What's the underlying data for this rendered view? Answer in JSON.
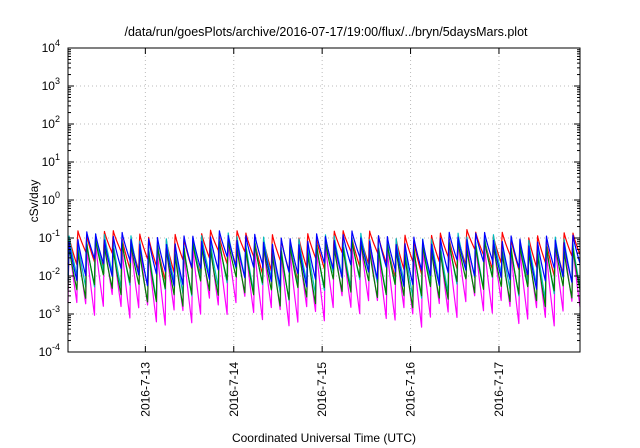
{
  "chart_data": {
    "type": "line",
    "title": "/data/run/goesPlots/archive/2016-07-17/19:00/flux/../bryn/5daysMars.plot",
    "xlabel": "Coordinated Universal Time (UTC)",
    "ylabel": "cSv/day",
    "yscale": "log",
    "ylim": [
      0.0001,
      10000
    ],
    "xlim": [
      "2016-07-12 03:00",
      "2016-07-17 22:00"
    ],
    "grid": true,
    "legend": "none",
    "y_tick_labels": [
      {
        "base": "10",
        "exp": "-4",
        "value": 0.0001
      },
      {
        "base": "10",
        "exp": "-3",
        "value": 0.001
      },
      {
        "base": "10",
        "exp": "-2",
        "value": 0.01
      },
      {
        "base": "10",
        "exp": "-1",
        "value": 0.1
      },
      {
        "base": "10",
        "exp": "0",
        "value": 1
      },
      {
        "base": "10",
        "exp": "1",
        "value": 10
      },
      {
        "base": "10",
        "exp": "2",
        "value": 100
      },
      {
        "base": "10",
        "exp": "3",
        "value": 1000
      },
      {
        "base": "10",
        "exp": "4",
        "value": 10000
      }
    ],
    "x_tick_labels": [
      "2016-7-13",
      "2016-7-14",
      "2016-7-15",
      "2016-7-16",
      "2016-7-17"
    ],
    "x_tick_values": [
      "2016-07-13 00:00",
      "2016-07-14 00:00",
      "2016-07-15 00:00",
      "2016-07-16 00:00",
      "2016-07-17 00:00"
    ],
    "period_hours": 2.4,
    "series": [
      {
        "color": "#ff0000",
        "peak": 0.11,
        "trough": 0.02
      },
      {
        "color": "#ff00ff",
        "peak": 0.07,
        "trough": 0.0012
      },
      {
        "color": "#00bfbf",
        "peak": 0.09,
        "trough": 0.006
      },
      {
        "color": "#008000",
        "peak": 0.06,
        "trough": 0.004
      },
      {
        "color": "#0000ff",
        "peak": 0.1,
        "trough": 0.012
      }
    ]
  }
}
